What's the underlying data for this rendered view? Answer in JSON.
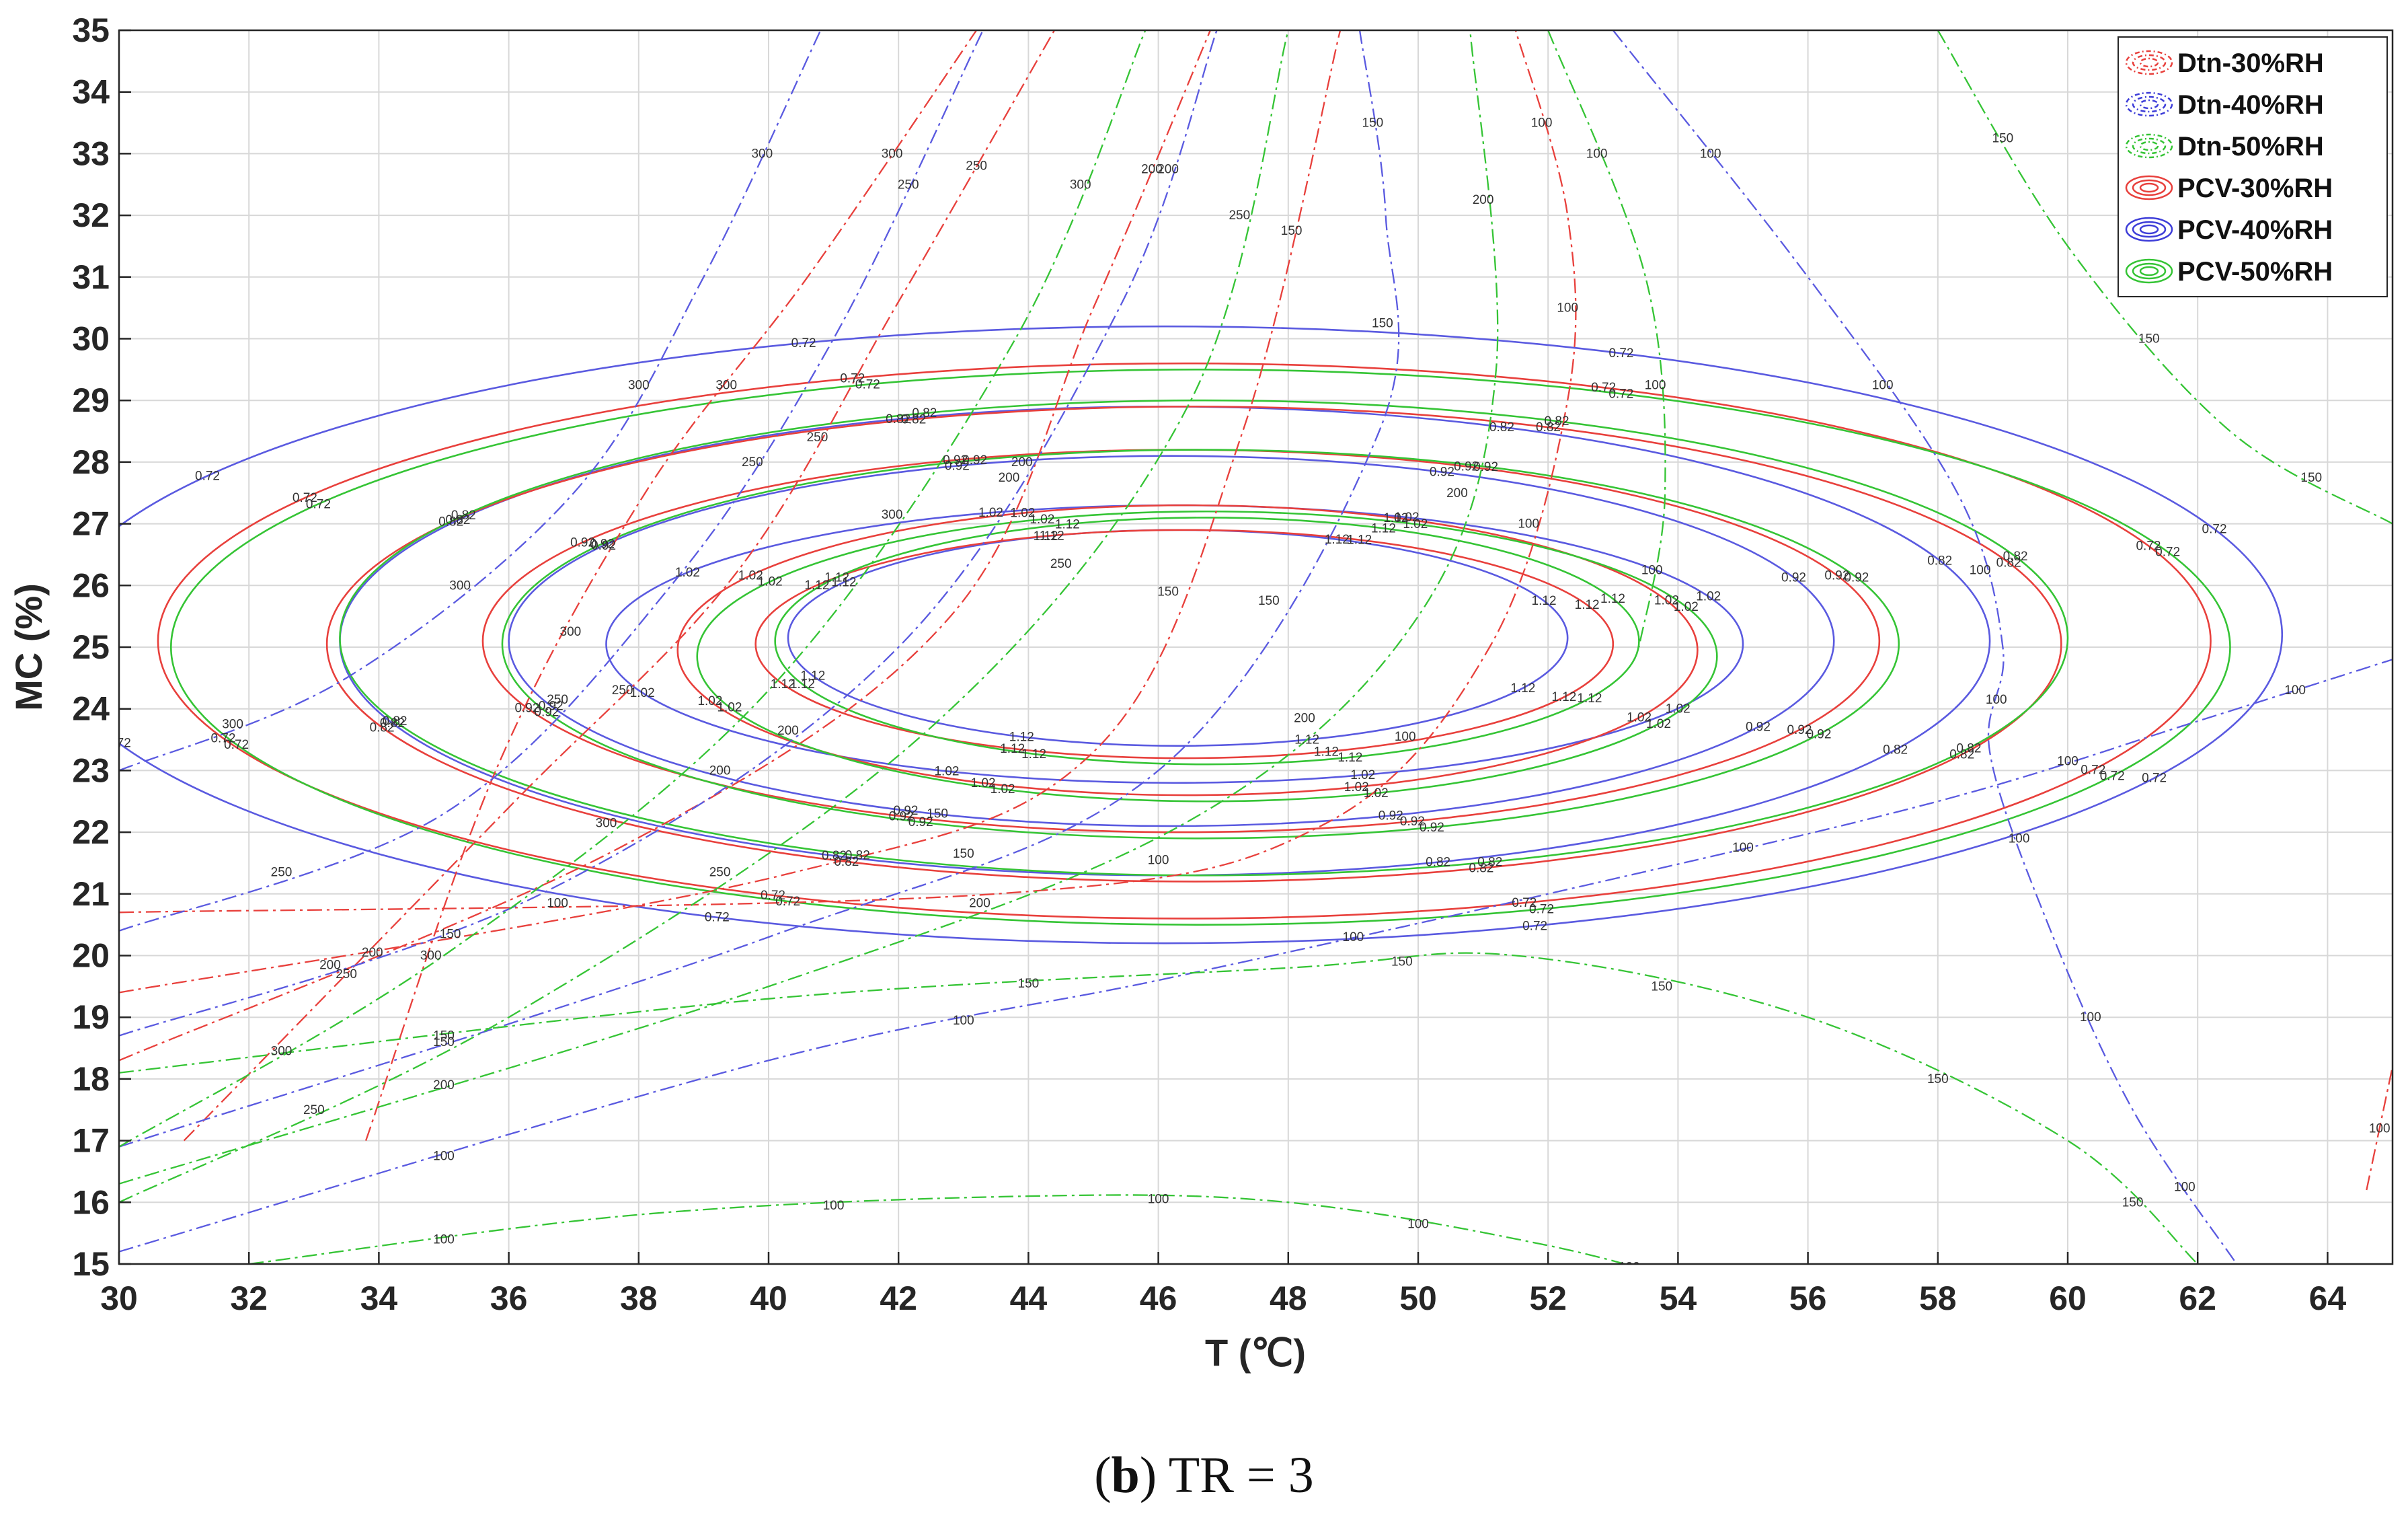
{
  "chart_data": {
    "type": "contour",
    "title": "",
    "xlabel": "T (℃)",
    "ylabel": "MC (%)",
    "xlim": [
      30,
      65
    ],
    "ylim": [
      15,
      35
    ],
    "x_ticks": [
      30,
      32,
      34,
      36,
      38,
      40,
      42,
      44,
      46,
      48,
      50,
      52,
      54,
      56,
      58,
      60,
      62,
      64
    ],
    "y_ticks": [
      15,
      16,
      17,
      18,
      19,
      20,
      21,
      22,
      23,
      24,
      25,
      26,
      27,
      28,
      29,
      30,
      31,
      32,
      33,
      34,
      35
    ],
    "grid": true,
    "legend_position": "top-right",
    "legend": [
      {
        "label": "Dtn-30%RH",
        "color": "#e8403c",
        "style": "dashdot"
      },
      {
        "label": "Dtn-40%RH",
        "color": "#3d3dd8",
        "style": "dashdot"
      },
      {
        "label": "Dtn-50%RH",
        "color": "#35c435",
        "style": "dashdot"
      },
      {
        "label": "PCV-30%RH",
        "color": "#e8403c",
        "style": "solid"
      },
      {
        "label": "PCV-40%RH",
        "color": "#3d3dd8",
        "style": "solid"
      },
      {
        "label": "PCV-50%RH",
        "color": "#35c435",
        "style": "solid"
      }
    ],
    "pcv_series": [
      {
        "name": "PCV-40%RH",
        "color": "#5a5ae0",
        "center": [
          46,
          25
        ],
        "levels": [
          {
            "value": "0.72",
            "x": [
              28.9,
              63.3
            ],
            "y": [
              20.2,
              30.2
            ]
          },
          {
            "value": "0.82",
            "x": [
              33.4,
              58.8
            ],
            "y": [
              21.3,
              28.9
            ]
          },
          {
            "value": "0.92",
            "x": [
              36.0,
              56.4
            ],
            "y": [
              22.1,
              28.1
            ]
          },
          {
            "value": "1.02",
            "x": [
              37.5,
              55.0
            ],
            "y": [
              22.8,
              27.3
            ]
          },
          {
            "value": "1.12",
            "x": [
              40.3,
              52.3
            ],
            "y": [
              23.4,
              26.9
            ]
          }
        ]
      },
      {
        "name": "PCV-30%RH",
        "color": "#e8403c",
        "center": [
          46.4,
          25
        ],
        "levels": [
          {
            "value": "0.72",
            "x": [
              30.6,
              62.2
            ],
            "y": [
              20.6,
              29.6
            ]
          },
          {
            "value": "0.82",
            "x": [
              33.2,
              59.9
            ],
            "y": [
              21.2,
              28.9
            ]
          },
          {
            "value": "0.92",
            "x": [
              35.6,
              57.1
            ],
            "y": [
              22.0,
              28.2
            ]
          },
          {
            "value": "1.02",
            "x": [
              38.6,
              54.3
            ],
            "y": [
              22.6,
              27.3
            ]
          },
          {
            "value": "1.12",
            "x": [
              39.8,
              53.0
            ],
            "y": [
              23.2,
              26.9
            ]
          }
        ]
      },
      {
        "name": "PCV-50%RH",
        "color": "#35c435",
        "center": [
          46.7,
          25
        ],
        "levels": [
          {
            "value": "0.72",
            "x": [
              30.8,
              62.5
            ],
            "y": [
              20.5,
              29.5
            ]
          },
          {
            "value": "0.82",
            "x": [
              33.4,
              60.0
            ],
            "y": [
              21.3,
              29.0
            ]
          },
          {
            "value": "0.92",
            "x": [
              35.9,
              57.4
            ],
            "y": [
              21.9,
              28.2
            ]
          },
          {
            "value": "1.02",
            "x": [
              38.9,
              54.6
            ],
            "y": [
              22.5,
              27.2
            ]
          },
          {
            "value": "1.12",
            "x": [
              40.1,
              53.4
            ],
            "y": [
              23.1,
              27.1
            ]
          }
        ]
      }
    ],
    "dtn_series": [
      {
        "name": "Dtn-30%RH",
        "color": "#e8403c",
        "lines": [
          {
            "label": "300",
            "x": [
              33.8,
              35.8,
              38.1,
              40.6,
              43.2
            ],
            "y": [
              17.0,
              23.0,
              27.5,
              31.0,
              35.0
            ]
          },
          {
            "label": "250",
            "x": [
              31.0,
              36.0,
              39.5,
              42.0,
              44.4
            ],
            "y": [
              17.0,
              22.4,
              26.2,
              30.6,
              35.0
            ]
          },
          {
            "label": "200",
            "x": [
              30.0,
              37.8,
              42.8,
              45.0,
              46.8
            ],
            "y": [
              18.3,
              21.8,
              25.5,
              30.5,
              35.0
            ]
          },
          {
            "label": "150",
            "x": [
              30.0,
              40.2,
              45.0,
              47.3,
              48.8
            ],
            "y": [
              19.4,
              21.3,
              23.3,
              28.5,
              35.0
            ]
          },
          {
            "label": "100",
            "x": [
              30.0,
              43.5,
              48.5,
              51.1,
              52.3,
              52.3,
              51.5
            ],
            "y": [
              20.7,
              21.0,
              22.1,
              25.0,
              29.0,
              32.0,
              35.0
            ]
          },
          {
            "label": "100",
            "x": [
              64.6,
              65.0
            ],
            "y": [
              16.2,
              18.2
            ]
          }
        ]
      },
      {
        "name": "Dtn-40%RH",
        "color": "#5a5ae0",
        "lines": [
          {
            "label": "300",
            "x": [
              30.0,
              33.5,
              37.0,
              39.0,
              40.8
            ],
            "y": [
              23.0,
              24.5,
              27.5,
              31.0,
              35.0
            ]
          },
          {
            "label": "250",
            "x": [
              30.0,
              35.0,
              38.5,
              41.0,
              43.3
            ],
            "y": [
              20.4,
              22.3,
              26.0,
              30.0,
              35.0
            ]
          },
          {
            "label": "200",
            "x": [
              30.0,
              36.5,
              42.0,
              45.4,
              46.9
            ],
            "y": [
              18.7,
              21.0,
              25.0,
              30.5,
              35.0
            ]
          },
          {
            "label": "150",
            "x": [
              30.0,
              40.0,
              46.0,
              49.4,
              49.5,
              49.1
            ],
            "y": [
              16.9,
              20.3,
              23.0,
              28.5,
              32.0,
              35.0
            ]
          },
          {
            "label": "100",
            "x": [
              30.0,
              40.0,
              46.0,
              52.0,
              58.0,
              62.0,
              65.0
            ],
            "y": [
              15.2,
              18.3,
              19.6,
              21.0,
              22.5,
              23.8,
              24.8
            ]
          },
          {
            "label": "100",
            "x": [
              53.0,
              56.0,
              58.3,
              59.0,
              58.8,
              59.7,
              61.0,
              62.6
            ],
            "y": [
              35.0,
              31.0,
              27.5,
              25.0,
              23.3,
              20.5,
              17.5,
              15.0
            ]
          }
        ]
      },
      {
        "name": "Dtn-50%RH",
        "color": "#35c435",
        "lines": [
          {
            "label": "300",
            "x": [
              30.0,
              35.0,
              40.0,
              43.8,
              45.8
            ],
            "y": [
              16.9,
              20.0,
              24.3,
              30.0,
              35.0
            ]
          },
          {
            "label": "250",
            "x": [
              30.0,
              36.0,
              42.5,
              46.5,
              48.0
            ],
            "y": [
              16.0,
              19.0,
              23.7,
              29.0,
              35.0
            ]
          },
          {
            "label": "200",
            "x": [
              30.0,
              40.0,
              46.5,
              50.0,
              51.2,
              50.8
            ],
            "y": [
              16.3,
              19.5,
              22.2,
              25.5,
              29.5,
              35.0
            ]
          },
          {
            "label": "150",
            "x": [
              30.0,
              40.0,
              48.0,
              51.5,
              56.0,
              60.0,
              62.0
            ],
            "y": [
              18.1,
              19.3,
              19.8,
              20.0,
              19.0,
              17.0,
              15.0
            ]
          },
          {
            "label": "100",
            "x": [
              32.0,
              38.0,
              44.0,
              48.0,
              52.0,
              54.5
            ],
            "y": [
              15.0,
              15.8,
              16.1,
              16.0,
              15.3,
              14.6
            ]
          },
          {
            "label": "100",
            "x": [
              52.0,
              53.5,
              53.8,
              53.4
            ],
            "y": [
              35.0,
              31.0,
              27.5,
              25.0
            ]
          },
          {
            "label": "150",
            "x": [
              58.0,
              60.0,
              62.5,
              65.0
            ],
            "y": [
              35.0,
              31.5,
              28.5,
              27.0
            ]
          }
        ]
      }
    ]
  },
  "caption": {
    "letter": "b",
    "text": ") TR = 3",
    "open_paren": "("
  }
}
